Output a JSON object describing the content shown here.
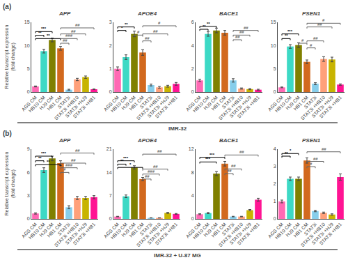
{
  "chart_data": [
    {
      "type": "bar",
      "title": "APP",
      "panel_label": "(a)",
      "subtitle": "IMR-32",
      "ylabel": "Relative transcript expression\n(fold change)",
      "categories": [
        "AGS CM",
        "HB10 CM",
        "HJ9 CM",
        "HB1 CM",
        "STAT3i",
        "STAT3i +HB10",
        "STAT3i +HJ9",
        "STAT3i +HB1"
      ],
      "values": [
        1.2,
        8.8,
        11.2,
        9.4,
        0.5,
        2.7,
        3.2,
        0.6
      ],
      "errors": [
        0.1,
        0.4,
        0.4,
        0.4,
        0.1,
        0.25,
        0.25,
        0.05
      ],
      "colors": [
        "#FF69B4",
        "#3DD9C5",
        "#808000",
        "#D2691E",
        "#87CEEB",
        "#FFA07A",
        "#C8B400",
        "#FF1493"
      ],
      "ylim": [
        0,
        15
      ],
      "yticks": [
        0,
        5,
        10,
        15
      ],
      "grid": false,
      "comparisons": [
        {
          "from": "AGS CM",
          "to": "HB10 CM",
          "y": 12.2,
          "label": "**",
          "color": "#000000"
        },
        {
          "from": "AGS CM",
          "to": "HJ9 CM",
          "y": 13,
          "label": "***",
          "color": "#000000"
        },
        {
          "from": "AGS CM",
          "to": "HB1 CM",
          "y": 11.5,
          "label": "**",
          "color": "#000000"
        },
        {
          "from": "HB1 CM",
          "to": "STAT3i",
          "y": 10.5,
          "label": "##",
          "color": "#666666"
        },
        {
          "from": "HB1 CM",
          "to": "STAT3i +HB10",
          "y": 11.5,
          "label": "###",
          "color": "#666666"
        },
        {
          "from": "HB1 CM",
          "to": "STAT3i +HJ9",
          "y": 12.5,
          "label": "##",
          "color": "#666666"
        },
        {
          "from": "HB1 CM",
          "to": "STAT3i +HB1",
          "y": 13.8,
          "label": "##",
          "color": "#666666"
        }
      ]
    },
    {
      "type": "bar",
      "title": "APOE4",
      "categories": [
        "AGS CM",
        "HB10 CM",
        "HJ9 CM",
        "HB1 CM",
        "STAT3i",
        "STAT3i +HB10",
        "STAT3i +HJ9",
        "STAT3i +HB1"
      ],
      "values": [
        1.0,
        1.5,
        2.5,
        1.7,
        0.3,
        0.2,
        0.25,
        0.35
      ],
      "errors": [
        0.08,
        0.1,
        0.12,
        0.12,
        0.04,
        0.04,
        0.04,
        0.06
      ],
      "colors": [
        "#FF69B4",
        "#3DD9C5",
        "#808000",
        "#D2691E",
        "#87CEEB",
        "#FFA07A",
        "#C8B400",
        "#FF1493"
      ],
      "ylim": [
        0,
        3
      ],
      "yticks": [
        0,
        1,
        2,
        3
      ],
      "grid": false,
      "comparisons": [
        {
          "from": "AGS CM",
          "to": "HB10 CM",
          "y": 2.65,
          "label": "*",
          "color": "#000000"
        },
        {
          "from": "AGS CM",
          "to": "HJ9 CM",
          "y": 2.8,
          "label": "**",
          "color": "#000000"
        },
        {
          "from": "HJ9 CM",
          "to": "HB1 CM",
          "y": 2.45,
          "label": "#",
          "color": "#666666"
        },
        {
          "from": "HB1 CM",
          "to": "STAT3i",
          "y": 2.2,
          "label": "##",
          "color": "#666666"
        },
        {
          "from": "HB1 CM",
          "to": "STAT3i +HJ9",
          "y": 2.5,
          "label": "##",
          "color": "#666666"
        },
        {
          "from": "HB1 CM",
          "to": "STAT3i +HB1",
          "y": 2.85,
          "label": "#",
          "color": "#666666"
        }
      ]
    },
    {
      "type": "bar",
      "title": "BACE1",
      "categories": [
        "AGS CM",
        "HB10 CM",
        "HJ9 CM",
        "HB1 CM",
        "STAT3i",
        "STAT3i +HB10",
        "STAT3i +HJ9",
        "STAT3i +HB1"
      ],
      "values": [
        1.0,
        5.0,
        5.3,
        5.1,
        1.0,
        0.3,
        0.25,
        0.2
      ],
      "errors": [
        0.1,
        0.2,
        0.2,
        0.2,
        0.15,
        0.05,
        0.05,
        0.04
      ],
      "colors": [
        "#FF69B4",
        "#3DD9C5",
        "#808000",
        "#D2691E",
        "#87CEEB",
        "#FFA07A",
        "#C8B400",
        "#FF1493"
      ],
      "ylim": [
        0,
        6
      ],
      "yticks": [
        0,
        2,
        4,
        6
      ],
      "grid": false,
      "comparisons": [
        {
          "from": "AGS CM",
          "to": "HB10 CM",
          "y": 5.4,
          "label": "**",
          "color": "#000000"
        },
        {
          "from": "AGS CM",
          "to": "HJ9 CM",
          "y": 5.65,
          "label": "**",
          "color": "#000000"
        },
        {
          "from": "STAT3i",
          "to": "STAT3i +HB10",
          "y": 4.5,
          "label": "##",
          "color": "#666666"
        },
        {
          "from": "STAT3i",
          "to": "STAT3i +HJ9",
          "y": 4.9,
          "label": "##",
          "color": "#666666"
        },
        {
          "from": "STAT3i",
          "to": "STAT3i +HB1",
          "y": 5.3,
          "label": "##",
          "color": "#666666"
        }
      ]
    },
    {
      "type": "bar",
      "title": "PSEN1",
      "categories": [
        "AGS CM",
        "HB10 CM",
        "HJ9 CM",
        "HB1 CM",
        "STAT3i",
        "STAT3i +HB10",
        "STAT3i +HJ9",
        "STAT3i +HB1"
      ],
      "values": [
        1.0,
        9.8,
        10.1,
        6.5,
        1.8,
        7.1,
        7.0,
        1.6
      ],
      "errors": [
        0.08,
        0.4,
        0.5,
        0.4,
        0.2,
        0.5,
        0.5,
        0.15
      ],
      "colors": [
        "#FF69B4",
        "#3DD9C5",
        "#808000",
        "#D2691E",
        "#87CEEB",
        "#FFA07A",
        "#C8B400",
        "#FF1493"
      ],
      "ylim": [
        0,
        15
      ],
      "yticks": [
        0,
        5,
        10,
        15
      ],
      "grid": false,
      "comparisons": [
        {
          "from": "AGS CM",
          "to": "HB10 CM",
          "y": 11.5,
          "label": "**",
          "color": "#000000"
        },
        {
          "from": "AGS CM",
          "to": "HJ9 CM",
          "y": 12.5,
          "label": "***",
          "color": "#000000"
        },
        {
          "from": "HJ9 CM",
          "to": "HB1 CM",
          "y": 10.5,
          "label": "#",
          "color": "#666666"
        },
        {
          "from": "HB1 CM",
          "to": "STAT3i",
          "y": 9.5,
          "label": "#",
          "color": "#666666"
        },
        {
          "from": "HB1 CM",
          "to": "STAT3i +HB10",
          "y": 11,
          "label": "##",
          "color": "#666666"
        },
        {
          "from": "HB1 CM",
          "to": "STAT3i +HJ9",
          "y": 14,
          "label": "##",
          "color": "#666666"
        },
        {
          "from": "HB1 CM",
          "to": "STAT3i +HB1",
          "y": 14.8,
          "label": "#",
          "color": "#666666"
        }
      ]
    },
    {
      "type": "bar",
      "title": "APP",
      "panel_label": "(b)",
      "subtitle": "IMR-32 + U-87 MG",
      "ylabel": "Relative transcript expression\n(fold change)",
      "categories": [
        "AGS CM",
        "HB10 CM",
        "HJ9 CM",
        "HB1 CM",
        "STAT3i",
        "STAT3i +HB10",
        "STAT3i +HJ9",
        "STAT3i +HB1"
      ],
      "values": [
        0.7,
        6.3,
        7.8,
        7.2,
        1.5,
        2.7,
        2.7,
        2.8
      ],
      "errors": [
        0.08,
        0.3,
        0.3,
        0.3,
        0.2,
        0.2,
        0.2,
        0.2
      ],
      "colors": [
        "#FF69B4",
        "#3DD9C5",
        "#808000",
        "#D2691E",
        "#87CEEB",
        "#FFA07A",
        "#C8B400",
        "#FF1493"
      ],
      "ylim": [
        0,
        9
      ],
      "yticks": [
        0,
        3,
        6,
        9
      ],
      "grid": false,
      "comparisons": [
        {
          "from": "AGS CM",
          "to": "HB10 CM",
          "y": 7.5,
          "label": "**",
          "color": "#000000"
        },
        {
          "from": "AGS CM",
          "to": "HJ9 CM",
          "y": 8.1,
          "label": "***",
          "color": "#000000"
        },
        {
          "from": "AGS CM",
          "to": "HB1 CM",
          "y": 7,
          "label": "**",
          "color": "#000000"
        },
        {
          "from": "HB1 CM",
          "to": "STAT3i",
          "y": 6,
          "label": "#",
          "color": "#666666"
        },
        {
          "from": "HB1 CM",
          "to": "STAT3i +HB10",
          "y": 6.6,
          "label": "###",
          "color": "#666666"
        },
        {
          "from": "HB1 CM",
          "to": "STAT3i +HJ9",
          "y": 7.2,
          "label": "##",
          "color": "#666666"
        },
        {
          "from": "HB1 CM",
          "to": "STAT3i +HB1",
          "y": 8.5,
          "label": "##",
          "color": "#666666"
        }
      ]
    },
    {
      "type": "bar",
      "title": "APOE4",
      "categories": [
        "AGS CM",
        "HB10 CM",
        "HJ9 CM",
        "HB1 CM",
        "STAT3i",
        "STAT3i +HB10",
        "STAT3i +HJ9",
        "STAT3i +HB1"
      ],
      "values": [
        0.7,
        6.8,
        15.5,
        12.0,
        0.3,
        0.3,
        1.8,
        1.5
      ],
      "errors": [
        0.08,
        0.4,
        0.5,
        0.5,
        0.04,
        0.04,
        0.15,
        0.12
      ],
      "colors": [
        "#FF69B4",
        "#3DD9C5",
        "#808000",
        "#D2691E",
        "#87CEEB",
        "#FFA07A",
        "#C8B400",
        "#FF1493"
      ],
      "ylim": [
        0,
        21
      ],
      "yticks": [
        0,
        7,
        14,
        21
      ],
      "grid": false,
      "comparisons": [
        {
          "from": "AGS CM",
          "to": "HB10 CM",
          "y": 16.5,
          "label": "**",
          "color": "#000000"
        },
        {
          "from": "AGS CM",
          "to": "HJ9 CM",
          "y": 17.5,
          "label": "***",
          "color": "#000000"
        },
        {
          "from": "AGS CM",
          "to": "HB1 CM",
          "y": 15.5,
          "label": "*",
          "color": "#000000"
        },
        {
          "from": "HB1 CM",
          "to": "STAT3i",
          "y": 12,
          "label": "##",
          "color": "#666666"
        },
        {
          "from": "HB1 CM",
          "to": "STAT3i +HB10",
          "y": 13.5,
          "label": "###",
          "color": "#666666"
        },
        {
          "from": "HB1 CM",
          "to": "STAT3i +HJ9",
          "y": 15,
          "label": "##",
          "color": "#666666"
        },
        {
          "from": "HB1 CM",
          "to": "STAT3i +HB1",
          "y": 19.5,
          "label": "##",
          "color": "#666666"
        }
      ]
    },
    {
      "type": "bar",
      "title": "BACE1",
      "categories": [
        "AGS CM",
        "HB10 CM",
        "HJ9 CM",
        "HB1 CM",
        "STAT3i",
        "STAT3i +HB10",
        "STAT3i +HJ9",
        "STAT3i +HB1"
      ],
      "values": [
        0.8,
        1.0,
        7.8,
        9.5,
        0.4,
        0.4,
        1.5,
        3.3
      ],
      "errors": [
        0.08,
        0.1,
        0.35,
        0.4,
        0.05,
        0.05,
        0.12,
        0.25
      ],
      "colors": [
        "#FF69B4",
        "#3DD9C5",
        "#808000",
        "#D2691E",
        "#87CEEB",
        "#FFA07A",
        "#C8B400",
        "#FF1493"
      ],
      "ylim": [
        0,
        12
      ],
      "yticks": [
        0,
        4,
        8,
        12
      ],
      "grid": false,
      "comparisons": [
        {
          "from": "AGS CM",
          "to": "HJ9 CM",
          "y": 9.8,
          "label": "***",
          "color": "#000000"
        },
        {
          "from": "AGS CM",
          "to": "HB1 CM",
          "y": 10.6,
          "label": "***",
          "color": "#000000"
        },
        {
          "from": "HB1 CM",
          "to": "STAT3i",
          "y": 7.8,
          "label": "##",
          "color": "#666666"
        },
        {
          "from": "HB1 CM",
          "to": "STAT3i +HB10",
          "y": 8.6,
          "label": "##",
          "color": "#666666"
        },
        {
          "from": "HB1 CM",
          "to": "STAT3i +HB1",
          "y": 11,
          "label": "##",
          "color": "#666666"
        }
      ]
    },
    {
      "type": "bar",
      "title": "PSEN1",
      "categories": [
        "AGS CM",
        "HB10 CM",
        "HJ9 CM",
        "HB1 CM",
        "STAT3i",
        "STAT3i +HB10",
        "STAT3i +HJ9",
        "STAT3i +HB1"
      ],
      "values": [
        1.0,
        2.3,
        2.3,
        3.35,
        0.45,
        0.35,
        0.25,
        2.4
      ],
      "errors": [
        0.08,
        0.1,
        0.1,
        0.15,
        0.04,
        0.04,
        0.04,
        0.18
      ],
      "colors": [
        "#FF69B4",
        "#3DD9C5",
        "#808000",
        "#D2691E",
        "#87CEEB",
        "#FFA07A",
        "#C8B400",
        "#FF1493"
      ],
      "ylim": [
        0,
        4
      ],
      "yticks": [
        0,
        1,
        2,
        3,
        4
      ],
      "grid": false,
      "comparisons": [
        {
          "from": "AGS CM",
          "to": "HB10 CM",
          "y": 3.6,
          "label": "**",
          "color": "#000000"
        },
        {
          "from": "AGS CM",
          "to": "HJ9 CM",
          "y": 3.75,
          "label": "*",
          "color": "#000000"
        },
        {
          "from": "HB1 CM",
          "to": "STAT3i",
          "y": 3,
          "label": "#",
          "color": "#666666"
        },
        {
          "from": "HB1 CM",
          "to": "STAT3i +HB10",
          "y": 3.3,
          "label": "##",
          "color": "#666666"
        },
        {
          "from": "HB1 CM",
          "to": "STAT3i +HB1",
          "y": 3.85,
          "label": "##",
          "color": "#666666"
        }
      ]
    }
  ]
}
